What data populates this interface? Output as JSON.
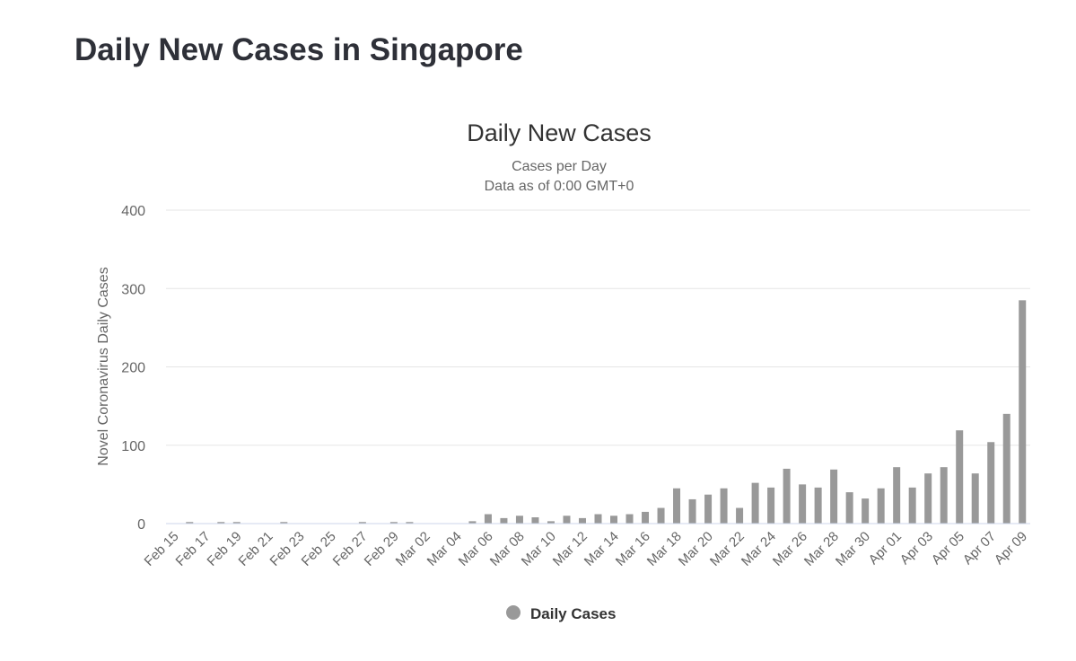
{
  "page": {
    "title": "Daily New Cases in Singapore"
  },
  "chart_data": {
    "type": "bar",
    "title": "Daily New Cases",
    "subtitle_lines": [
      "Cases per Day",
      "Data as of 0:00 GMT+0"
    ],
    "ylabel": "Novel Coronavirus Daily Cases",
    "xlabel": "",
    "ylim": [
      0,
      400
    ],
    "y_ticks": [
      "0",
      "100",
      "200",
      "300",
      "400"
    ],
    "grid": true,
    "legend_position": "bottom",
    "bar_color": "#999999",
    "categories": [
      "Feb 15",
      "Feb 16",
      "Feb 17",
      "Feb 18",
      "Feb 19",
      "Feb 20",
      "Feb 21",
      "Feb 22",
      "Feb 23",
      "Feb 24",
      "Feb 25",
      "Feb 26",
      "Feb 27",
      "Feb 28",
      "Feb 29",
      "Mar 01",
      "Mar 02",
      "Mar 03",
      "Mar 04",
      "Mar 05",
      "Mar 06",
      "Mar 07",
      "Mar 08",
      "Mar 09",
      "Mar 10",
      "Mar 11",
      "Mar 12",
      "Mar 13",
      "Mar 14",
      "Mar 15",
      "Mar 16",
      "Mar 17",
      "Mar 18",
      "Mar 19",
      "Mar 20",
      "Mar 21",
      "Mar 22",
      "Mar 23",
      "Mar 24",
      "Mar 25",
      "Mar 26",
      "Mar 27",
      "Mar 28",
      "Mar 29",
      "Mar 30",
      "Mar 31",
      "Apr 01",
      "Apr 02",
      "Apr 03",
      "Apr 04",
      "Apr 05",
      "Apr 06",
      "Apr 07",
      "Apr 08",
      "Apr 09"
    ],
    "x_tick_labels": [
      "Feb 15",
      "Feb 17",
      "Feb 19",
      "Feb 21",
      "Feb 23",
      "Feb 25",
      "Feb 27",
      "Feb 29",
      "Mar 02",
      "Mar 04",
      "Mar 06",
      "Mar 08",
      "Mar 10",
      "Mar 12",
      "Mar 14",
      "Mar 16",
      "Mar 18",
      "Mar 20",
      "Mar 22",
      "Mar 24",
      "Mar 26",
      "Mar 28",
      "Mar 30",
      "Apr 01",
      "Apr 03",
      "Apr 05",
      "Apr 07",
      "Apr 09"
    ],
    "series": [
      {
        "name": "Daily Cases",
        "values": [
          0,
          2,
          0,
          2,
          2,
          0,
          0,
          2,
          0,
          0,
          0,
          0,
          2,
          0,
          2,
          2,
          0,
          0,
          0,
          3,
          12,
          7,
          10,
          8,
          3,
          10,
          7,
          12,
          10,
          12,
          15,
          20,
          45,
          31,
          37,
          45,
          20,
          52,
          46,
          70,
          50,
          46,
          69,
          40,
          32,
          45,
          72,
          46,
          64,
          72,
          119,
          64,
          104,
          140,
          285
        ]
      }
    ]
  }
}
